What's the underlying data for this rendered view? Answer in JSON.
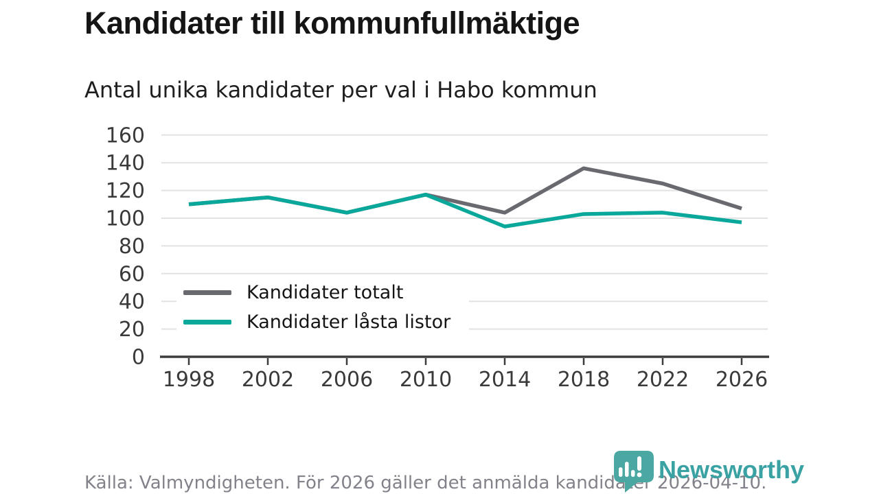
{
  "header": {
    "title": "Kandidater till kommunfullmäktige",
    "subtitle": "Antal unika kandidater per val i Habo kommun"
  },
  "chart_data": {
    "type": "line",
    "x": [
      1998,
      2002,
      2006,
      2010,
      2014,
      2018,
      2022,
      2026
    ],
    "series": [
      {
        "name": "Kandidater totalt",
        "color": "#696970",
        "values": [
          110,
          115,
          104,
          117,
          104,
          136,
          125,
          107
        ]
      },
      {
        "name": "Kandidater låsta listor",
        "color": "#0aa79b",
        "values": [
          110,
          115,
          104,
          117,
          94,
          103,
          104,
          97
        ]
      }
    ],
    "title": "Kandidater till kommunfullmäktige",
    "subtitle": "Antal unika kandidater per val i Habo kommun",
    "xlabel": "",
    "ylabel": "",
    "ylim": [
      0,
      160
    ],
    "yticks": [
      0,
      20,
      40,
      60,
      80,
      100,
      120,
      140,
      160
    ],
    "grid": true,
    "legend_position": "inside-left",
    "grid_color": "#e2e2e2",
    "axis_color": "#3c3c3c",
    "tick_label_color": "#3a3a3a"
  },
  "footer": {
    "source_text": "Källa: Valmyndigheten. För 2026 gäller det anmälda kandidater 2026-04-10.",
    "brand": {
      "name": "Newsworthy",
      "text_color": "#3aa2a3",
      "icon_color": "#4aa7a2",
      "icon_glyph_color": "#ffffff"
    }
  }
}
